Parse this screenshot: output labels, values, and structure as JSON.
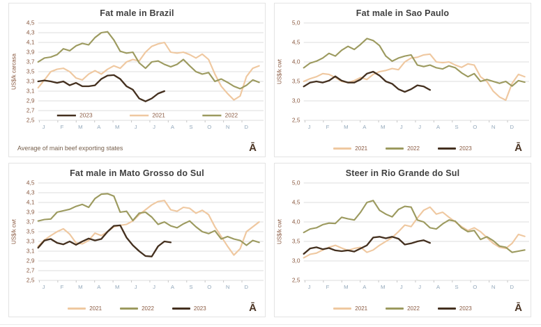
{
  "palette": {
    "grid": "#dcdcdc",
    "axis_text": "#8a5a41",
    "month_text": "#93a8bb",
    "title_text": "#3f3f3f",
    "watermark_text": "#4a3322",
    "series_2021": "#efc8a0",
    "series_2022": "#9c9a5f",
    "series_2023": "#44301f"
  },
  "chart_data": [
    {
      "type": "line",
      "title": "Fat male in Brazil",
      "ylabel": "US$/k carcasa",
      "footer": "Average  of main beef exporting states",
      "watermark": "Ā",
      "x_months": [
        "J",
        "F",
        "M",
        "A",
        "M",
        "J",
        "J",
        "A",
        "S",
        "O",
        "N",
        "D"
      ],
      "ylim": [
        2.5,
        4.5
      ],
      "yticks": [
        "4,5",
        "4,3",
        "4,1",
        "3,9",
        "3,7",
        "3,5",
        "3,3",
        "3,1",
        "2,9",
        "2,7",
        "2,5"
      ],
      "grid": true,
      "points_per_year": 36,
      "legend": {
        "position": "inside-bottom-left",
        "order": [
          "2023",
          "2021",
          "2022"
        ]
      },
      "series": [
        {
          "name": "2021",
          "color": "#efc8a0",
          "values": [
            3.17,
            3.33,
            3.5,
            3.55,
            3.57,
            3.5,
            3.37,
            3.33,
            3.45,
            3.52,
            3.45,
            3.55,
            3.62,
            3.57,
            3.7,
            3.75,
            3.72,
            3.9,
            4.02,
            4.07,
            4.1,
            3.9,
            3.88,
            3.9,
            3.85,
            3.78,
            3.86,
            3.75,
            3.45,
            3.2,
            3.05,
            2.92,
            3.0,
            3.4,
            3.57,
            3.62
          ]
        },
        {
          "name": "2022",
          "color": "#9c9a5f",
          "values": [
            3.7,
            3.78,
            3.8,
            3.85,
            3.97,
            3.93,
            4.03,
            4.08,
            4.05,
            4.2,
            4.3,
            4.32,
            4.15,
            3.92,
            3.88,
            3.9,
            3.68,
            3.57,
            3.7,
            3.72,
            3.65,
            3.6,
            3.65,
            3.75,
            3.62,
            3.5,
            3.45,
            3.48,
            3.3,
            3.35,
            3.28,
            3.2,
            3.15,
            3.22,
            3.33,
            3.28
          ]
        },
        {
          "name": "2023",
          "color": "#44301f",
          "values": [
            3.3,
            3.32,
            3.3,
            3.27,
            3.3,
            3.22,
            3.27,
            3.2,
            3.2,
            3.22,
            3.35,
            3.42,
            3.43,
            3.35,
            3.2,
            3.13,
            2.95,
            2.89,
            2.95,
            3.05,
            3.1
          ]
        }
      ]
    },
    {
      "type": "line",
      "title": "Fat male in Sao Paulo",
      "ylabel": "US$/k cwt",
      "watermark": "Ā",
      "x_months": [
        "J",
        "F",
        "M",
        "A",
        "M",
        "J",
        "J",
        "A",
        "S",
        "O",
        "N",
        "D"
      ],
      "ylim": [
        2.5,
        5.0
      ],
      "yticks": [
        "5,0",
        "4,5",
        "4,0",
        "3,5",
        "3,0",
        "2,5"
      ],
      "grid": true,
      "points_per_year": 36,
      "legend": {
        "position": "below",
        "order": [
          "2021",
          "2022",
          "2023"
        ]
      },
      "series": [
        {
          "name": "2021",
          "color": "#efc8a0",
          "values": [
            3.5,
            3.57,
            3.62,
            3.7,
            3.68,
            3.6,
            3.5,
            3.47,
            3.52,
            3.6,
            3.55,
            3.68,
            3.75,
            3.78,
            3.83,
            3.8,
            4.0,
            4.1,
            4.12,
            4.18,
            4.2,
            4.0,
            3.98,
            4.0,
            3.92,
            3.86,
            3.95,
            3.92,
            3.62,
            3.5,
            3.25,
            3.1,
            3.02,
            3.45,
            3.68,
            3.62
          ]
        },
        {
          "name": "2022",
          "color": "#9c9a5f",
          "values": [
            3.85,
            3.97,
            4.02,
            4.1,
            4.22,
            4.15,
            4.3,
            4.4,
            4.32,
            4.45,
            4.6,
            4.55,
            4.42,
            4.15,
            4.02,
            4.1,
            4.15,
            4.18,
            3.92,
            3.88,
            3.92,
            3.85,
            3.82,
            3.9,
            3.85,
            3.72,
            3.62,
            3.7,
            3.5,
            3.55,
            3.5,
            3.45,
            3.5,
            3.38,
            3.52,
            3.48
          ]
        },
        {
          "name": "2023",
          "color": "#44301f",
          "values": [
            3.37,
            3.47,
            3.5,
            3.47,
            3.52,
            3.63,
            3.52,
            3.47,
            3.47,
            3.55,
            3.7,
            3.75,
            3.65,
            3.5,
            3.44,
            3.3,
            3.23,
            3.3,
            3.4,
            3.37,
            3.28
          ]
        }
      ]
    },
    {
      "type": "line",
      "title": "Fat male in Mato Grosso do Sul",
      "ylabel": "US$/k cwt",
      "watermark": "Ā",
      "x_months": [
        "J",
        "F",
        "M",
        "A",
        "M",
        "J",
        "J",
        "A",
        "S",
        "O",
        "N",
        "D"
      ],
      "ylim": [
        2.5,
        4.5
      ],
      "yticks": [
        "4,5",
        "4,3",
        "4,1",
        "3,9",
        "3,7",
        "3,5",
        "3,3",
        "3,1",
        "2,9",
        "2,7",
        "2,5"
      ],
      "grid": true,
      "points_per_year": 36,
      "legend": {
        "position": "below",
        "order": [
          "2021",
          "2022",
          "2023"
        ]
      },
      "series": [
        {
          "name": "2021",
          "color": "#efc8a0",
          "values": [
            3.2,
            3.33,
            3.42,
            3.5,
            3.56,
            3.45,
            3.27,
            3.25,
            3.32,
            3.47,
            3.42,
            3.5,
            3.6,
            3.63,
            3.65,
            3.72,
            3.85,
            3.95,
            4.05,
            4.12,
            4.14,
            3.95,
            3.92,
            4.0,
            3.98,
            3.88,
            3.94,
            3.85,
            3.6,
            3.4,
            3.2,
            3.02,
            3.15,
            3.5,
            3.6,
            3.7
          ]
        },
        {
          "name": "2022",
          "color": "#9c9a5f",
          "values": [
            3.72,
            3.75,
            3.76,
            3.9,
            3.93,
            3.96,
            4.02,
            4.06,
            4.0,
            4.18,
            4.27,
            4.28,
            4.23,
            3.9,
            3.92,
            3.73,
            3.88,
            3.9,
            3.8,
            3.65,
            3.7,
            3.62,
            3.58,
            3.66,
            3.72,
            3.6,
            3.5,
            3.46,
            3.52,
            3.35,
            3.4,
            3.35,
            3.32,
            3.22,
            3.32,
            3.28
          ]
        },
        {
          "name": "2023",
          "color": "#44301f",
          "values": [
            3.17,
            3.32,
            3.35,
            3.27,
            3.24,
            3.3,
            3.23,
            3.3,
            3.36,
            3.32,
            3.35,
            3.5,
            3.62,
            3.63,
            3.38,
            3.22,
            3.1,
            3.0,
            2.99,
            3.2,
            3.3,
            3.28
          ]
        }
      ]
    },
    {
      "type": "line",
      "title": "Steer  in Rio Grande do Sul",
      "ylabel": "US$/k cwt",
      "watermark": "Ā",
      "x_months": [
        "J",
        "F",
        "M",
        "A",
        "M",
        "J",
        "J",
        "A",
        "S",
        "O",
        "N",
        "D"
      ],
      "ylim": [
        2.5,
        5.0
      ],
      "yticks": [
        "5,0",
        "4,5",
        "4,0",
        "3,5",
        "3,0",
        "2,5"
      ],
      "grid": true,
      "points_per_year": 36,
      "legend": {
        "position": "below",
        "order": [
          "2021",
          "2022",
          "2023"
        ]
      },
      "series": [
        {
          "name": "2021",
          "color": "#efc8a0",
          "values": [
            3.08,
            3.17,
            3.2,
            3.28,
            3.35,
            3.4,
            3.33,
            3.27,
            3.32,
            3.35,
            3.22,
            3.28,
            3.4,
            3.5,
            3.6,
            3.75,
            3.92,
            3.88,
            4.1,
            4.3,
            4.38,
            4.2,
            4.25,
            4.12,
            4.0,
            3.88,
            3.78,
            3.85,
            3.75,
            3.6,
            3.45,
            3.35,
            3.32,
            3.45,
            3.68,
            3.63
          ]
        },
        {
          "name": "2022",
          "color": "#9c9a5f",
          "values": [
            3.73,
            3.82,
            3.85,
            3.93,
            3.97,
            3.96,
            4.12,
            4.08,
            4.05,
            4.25,
            4.5,
            4.55,
            4.3,
            4.2,
            4.13,
            4.32,
            4.4,
            4.38,
            4.05,
            4.0,
            3.85,
            3.82,
            3.95,
            4.05,
            4.02,
            3.85,
            3.75,
            3.78,
            3.55,
            3.62,
            3.52,
            3.38,
            3.35,
            3.22,
            3.25,
            3.28
          ]
        },
        {
          "name": "2023",
          "color": "#44301f",
          "values": [
            3.18,
            3.32,
            3.35,
            3.3,
            3.33,
            3.27,
            3.25,
            3.27,
            3.24,
            3.32,
            3.4,
            3.6,
            3.62,
            3.58,
            3.62,
            3.57,
            3.42,
            3.45,
            3.5,
            3.53,
            3.46
          ]
        }
      ]
    }
  ]
}
